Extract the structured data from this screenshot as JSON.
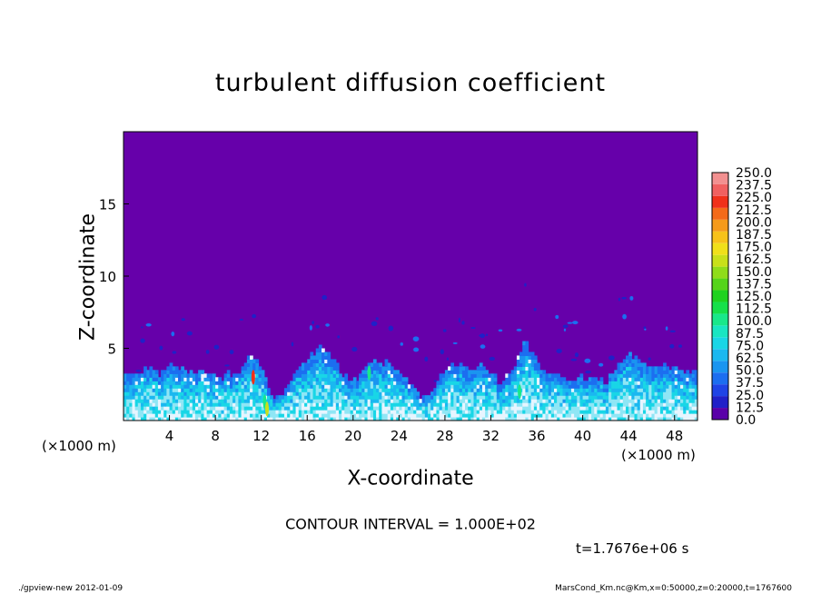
{
  "chart_data": {
    "type": "heatmap",
    "title": "turbulent diffusion coefficient",
    "xlabel": "X-coordinate",
    "ylabel": "Z-coordinate",
    "x_unit": "(×1000 m)",
    "x_ticks": [
      4,
      8,
      12,
      16,
      20,
      24,
      28,
      32,
      36,
      40,
      44,
      48
    ],
    "y_ticks": [
      5,
      10,
      15
    ],
    "xlim": [
      0,
      50
    ],
    "ylim": [
      0,
      20
    ],
    "colorbar": {
      "levels": [
        "0.0",
        "12.5",
        "25.0",
        "37.5",
        "50.0",
        "62.5",
        "75.0",
        "87.5",
        "100.0",
        "112.5",
        "125.0",
        "137.5",
        "150.0",
        "162.5",
        "175.0",
        "187.5",
        "200.0",
        "212.5",
        "225.0",
        "237.5",
        "250.0"
      ],
      "colors": [
        "#5a00a8",
        "#2020c8",
        "#1f44e6",
        "#1c6ef0",
        "#1a95f0",
        "#1ab8f0",
        "#19d6e6",
        "#19e6c2",
        "#19e88a",
        "#16e04a",
        "#1fd21f",
        "#55d41a",
        "#8fdc1a",
        "#c8e01a",
        "#f0e01a",
        "#f7c21a",
        "#f59a1a",
        "#f36a1a",
        "#f0301a",
        "#f06060",
        "#f29090"
      ]
    },
    "background_color": "#6600aa",
    "boundary_layer_profile_km": [
      [
        0,
        3.3
      ],
      [
        1,
        3.0
      ],
      [
        2,
        3.4
      ],
      [
        3,
        3.1
      ],
      [
        4,
        3.6
      ],
      [
        5,
        3.5
      ],
      [
        6,
        3.2
      ],
      [
        7,
        3.5
      ],
      [
        8,
        2.8
      ],
      [
        9,
        3.0
      ],
      [
        10,
        3.2
      ],
      [
        11,
        4.6
      ],
      [
        12,
        3.6
      ],
      [
        13,
        1.2
      ],
      [
        14,
        2.0
      ],
      [
        15,
        3.2
      ],
      [
        16,
        4.2
      ],
      [
        17,
        5.0
      ],
      [
        18,
        4.5
      ],
      [
        19,
        3.2
      ],
      [
        20,
        2.5
      ],
      [
        21,
        3.6
      ],
      [
        22,
        4.0
      ],
      [
        23,
        3.8
      ],
      [
        24,
        3.2
      ],
      [
        25,
        2.6
      ],
      [
        26,
        1.4
      ],
      [
        27,
        2.2
      ],
      [
        28,
        3.6
      ],
      [
        29,
        3.8
      ],
      [
        30,
        3.6
      ],
      [
        31,
        3.6
      ],
      [
        32,
        3.2
      ],
      [
        33,
        2.4
      ],
      [
        34,
        3.4
      ],
      [
        35,
        5.6
      ],
      [
        36,
        3.8
      ],
      [
        37,
        3.0
      ],
      [
        38,
        3.2
      ],
      [
        39,
        2.6
      ],
      [
        40,
        2.8
      ],
      [
        41,
        3.0
      ],
      [
        42,
        2.5
      ],
      [
        43,
        3.8
      ],
      [
        44,
        4.5
      ],
      [
        45,
        4.0
      ],
      [
        46,
        3.4
      ],
      [
        47,
        3.8
      ],
      [
        48,
        3.6
      ],
      [
        49,
        3.4
      ],
      [
        50,
        3.2
      ]
    ]
  },
  "contour_text": "CONTOUR INTERVAL = 1.000E+02",
  "time_text": "t=1.7676e+06 s",
  "footer_left": "./gpview-new  2012-01-09",
  "footer_right": "MarsCond_Km.nc@Km,x=0:50000,z=0:20000,t=1767600"
}
